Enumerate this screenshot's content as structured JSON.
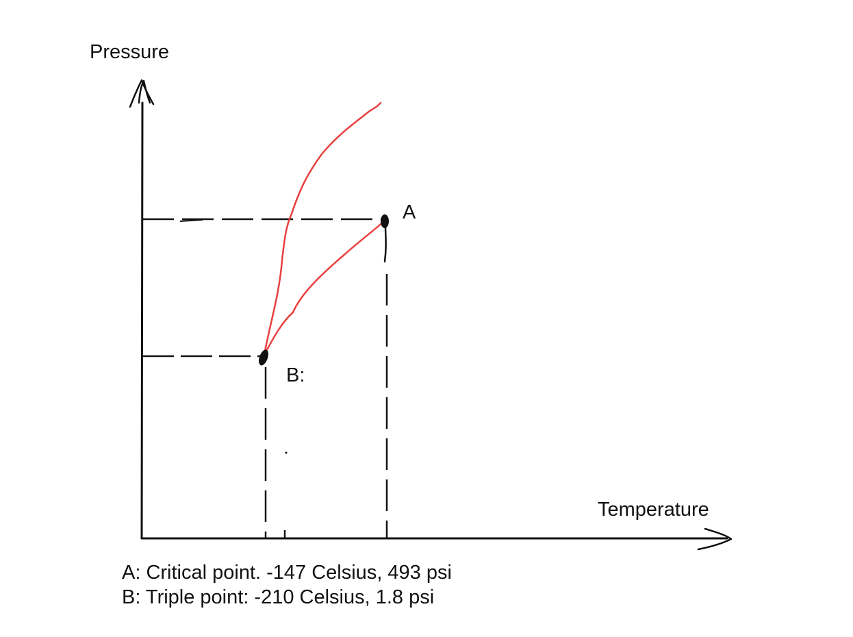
{
  "axes": {
    "y_label": "Pressure",
    "x_label": "Temperature"
  },
  "points": {
    "a": {
      "label": "A",
      "temperature_celsius": -147,
      "pressure_psi": 493
    },
    "b": {
      "label": "B:",
      "temperature_celsius": -210,
      "pressure_psi": 1.8
    }
  },
  "legend": {
    "line_a": "A: Critical point. -147 Celsius, 493 psi",
    "line_b": "B: Triple point: -210 Celsius, 1.8 psi"
  },
  "colors": {
    "curve": "#e8403f",
    "ink": "#111111"
  }
}
